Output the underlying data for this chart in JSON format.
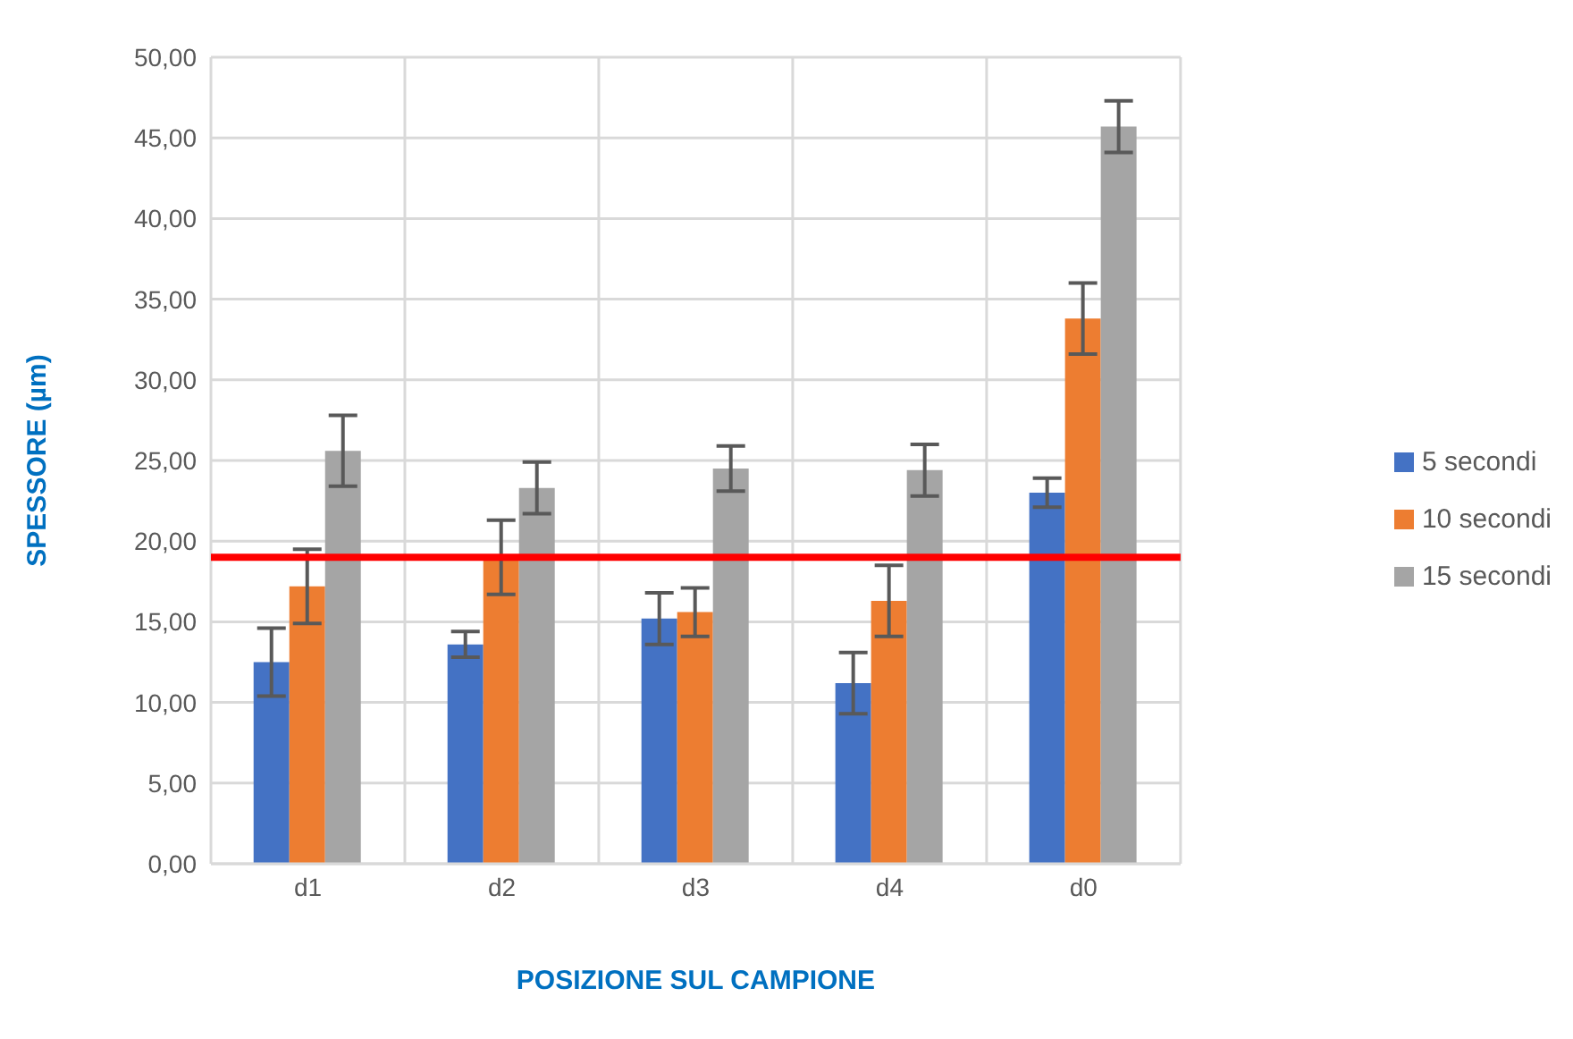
{
  "chart_data": {
    "type": "bar",
    "xlabel": "POSIZIONE SUL CAMPIONE",
    "ylabel": "SPESSORE (µm)",
    "categories": [
      "d1",
      "d2",
      "d3",
      "d4",
      "d0"
    ],
    "series": [
      {
        "name": "5 secondi",
        "color": "#4472c4",
        "values": [
          12.5,
          13.6,
          15.2,
          11.2,
          23.0
        ],
        "errors": [
          2.1,
          0.8,
          1.6,
          1.9,
          0.9
        ]
      },
      {
        "name": "10 secondi",
        "color": "#ed7d31",
        "values": [
          17.2,
          19.0,
          15.6,
          16.3,
          33.8
        ],
        "errors": [
          2.3,
          2.3,
          1.5,
          2.2,
          2.2
        ]
      },
      {
        "name": "15 secondi",
        "color": "#a5a5a5",
        "values": [
          25.6,
          23.3,
          24.5,
          24.4,
          45.7
        ],
        "errors": [
          2.2,
          1.6,
          1.4,
          1.6,
          1.6
        ]
      }
    ],
    "ylim": [
      0,
      50
    ],
    "yticks": [
      {
        "value": 0,
        "label": "0,00"
      },
      {
        "value": 5,
        "label": "5,00"
      },
      {
        "value": 10,
        "label": "10,00"
      },
      {
        "value": 15,
        "label": "15,00"
      },
      {
        "value": 20,
        "label": "20,00"
      },
      {
        "value": 25,
        "label": "25,00"
      },
      {
        "value": 30,
        "label": "30,00"
      },
      {
        "value": 35,
        "label": "35,00"
      },
      {
        "value": 40,
        "label": "40,00"
      },
      {
        "value": 45,
        "label": "45,00"
      },
      {
        "value": 50,
        "label": "50,00"
      }
    ],
    "grid": true,
    "legend": "right",
    "ref_lines": [
      {
        "axis": "y",
        "value": 19.0,
        "label": null,
        "color": "#ff0000"
      }
    ]
  }
}
